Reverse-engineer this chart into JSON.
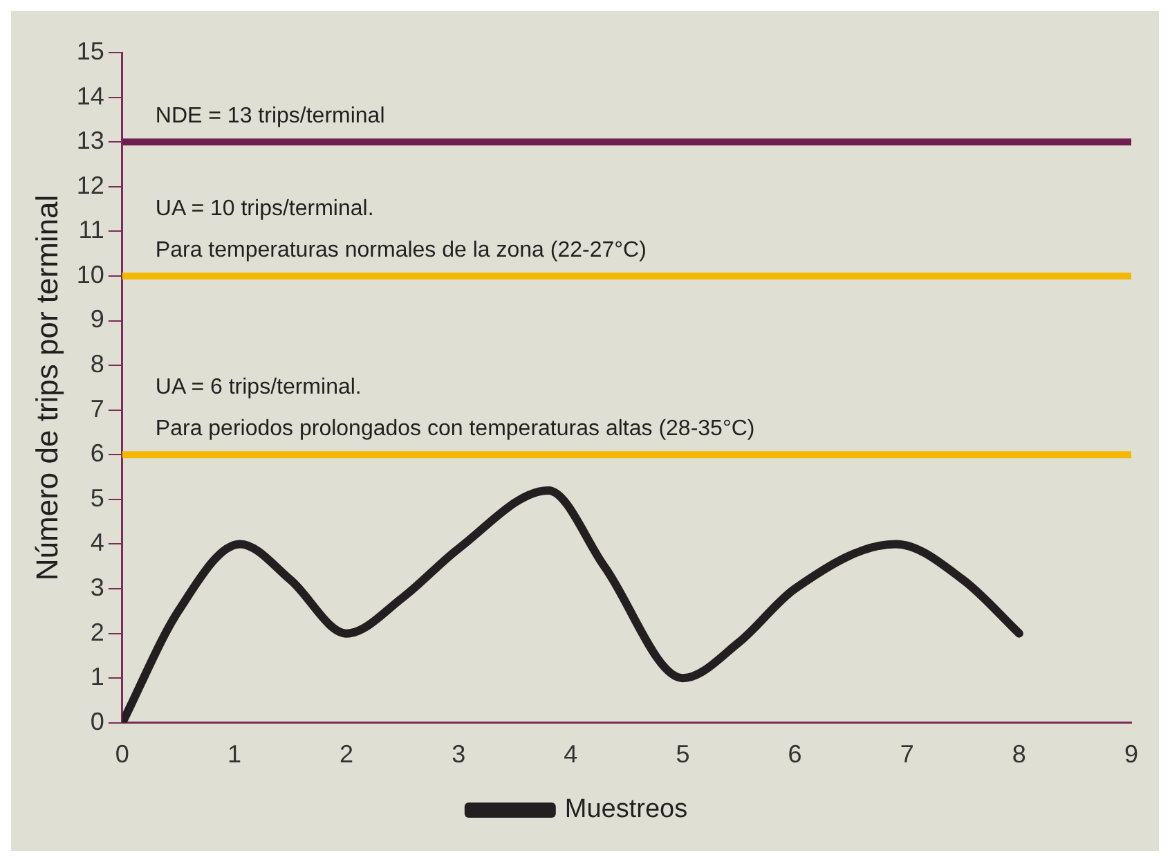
{
  "chart_data": {
    "type": "line",
    "ylabel": "Número de trips por terminal",
    "x": [
      0,
      0.5,
      1.05,
      1.5,
      2,
      2.5,
      3,
      3.8,
      4.3,
      5,
      5.5,
      6,
      6.9,
      7.5,
      8
    ],
    "series": [
      {
        "name": "Muestreos",
        "color": "#231f20",
        "values": [
          0,
          2.5,
          4.0,
          3.2,
          2.0,
          2.8,
          3.9,
          5.2,
          3.5,
          1.0,
          1.8,
          3.0,
          4.0,
          3.2,
          2.0
        ]
      }
    ],
    "xlim": [
      0,
      9
    ],
    "xticks": [
      0,
      1,
      2,
      3,
      4,
      5,
      6,
      7,
      8,
      9
    ],
    "ylim": [
      0,
      15
    ],
    "yticks": [
      0,
      1,
      2,
      3,
      4,
      5,
      6,
      7,
      8,
      9,
      10,
      11,
      12,
      13,
      14,
      15
    ],
    "ref_lines": [
      {
        "axis": "y",
        "value": 13,
        "label": "NDE = 13 trips/terminal",
        "color": "#6e1f4f"
      },
      {
        "axis": "y",
        "value": 10,
        "label": "UA = 10 trips/terminal.\nPara temperaturas normales de la zona (22-27°C)",
        "color": "#f5b800"
      },
      {
        "axis": "y",
        "value": 6,
        "label": "UA = 6 trips/terminal.\nPara periodos prolongados con temperaturas altas (28-35°C)",
        "color": "#f5b800"
      }
    ],
    "grid": false,
    "legend": "bottom",
    "marker": "none",
    "line_style": "solid"
  }
}
